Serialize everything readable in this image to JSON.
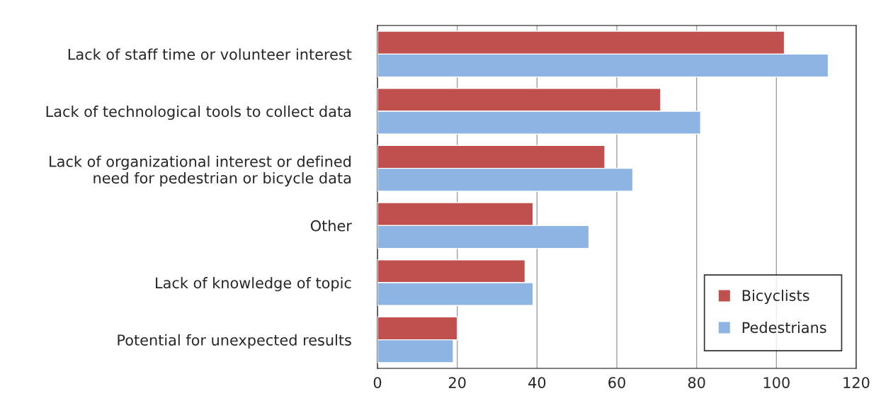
{
  "chart_data": {
    "type": "bar",
    "orientation": "horizontal",
    "categories": [
      "Lack of staff time or volunteer interest",
      "Lack of technological tools to collect data",
      "Lack of organizational interest or defined\nneed for pedestrian or bicycle data",
      "Other",
      "Lack of knowledge of topic",
      "Potential for unexpected results"
    ],
    "series": [
      {
        "name": "Bicyclists",
        "color": "#c0504d",
        "values": [
          102,
          71,
          57,
          39,
          37,
          20
        ]
      },
      {
        "name": "Pedestrians",
        "color": "#8eb4e3",
        "values": [
          113,
          81,
          64,
          53,
          39,
          19
        ]
      }
    ],
    "xlim": [
      0,
      120
    ],
    "xticks": [
      0,
      20,
      40,
      60,
      80,
      100,
      120
    ],
    "grid": "x",
    "legend": "bottom right"
  }
}
